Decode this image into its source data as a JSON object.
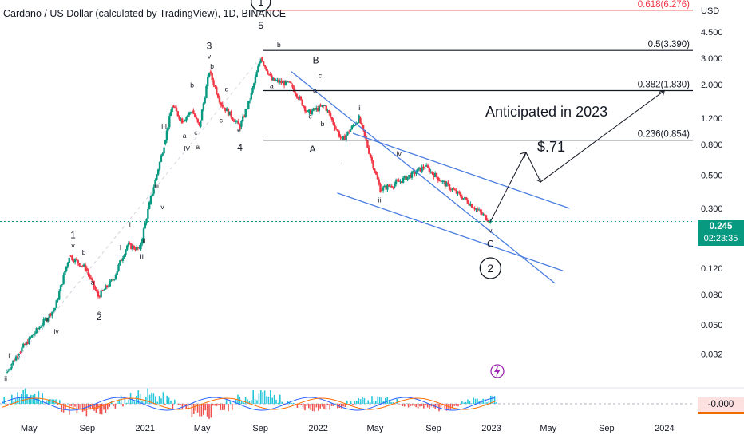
{
  "title": "Cardano / US Dollar (calculated by TradingView), 1D, BINANCE",
  "currency": "USD",
  "price_badge": {
    "price": "0.245",
    "countdown": "02:23:35"
  },
  "osc_badge": "-0.000",
  "annotation_main": "Anticipated in 2023",
  "annotation_target": "$.71",
  "colors": {
    "up": "#089981",
    "down": "#f23645",
    "trend": "#4a7de0",
    "ink": "#131722",
    "fib_top": "#f23645"
  },
  "chart_data": {
    "type": "candlestick",
    "title": "Cardano / US Dollar (calculated by TradingView), 1D, BINANCE",
    "y_scale": "log",
    "ylim": [
      0.02,
      7.0
    ],
    "y_ticks": [
      "4.500",
      "3.000",
      "2.000",
      "1.200",
      "0.800",
      "0.500",
      "0.300",
      "0.120",
      "0.080",
      "0.050",
      "0.032"
    ],
    "y_tick_values": [
      4.5,
      3.0,
      2.0,
      1.2,
      0.8,
      0.5,
      0.3,
      0.12,
      0.08,
      0.05,
      0.032
    ],
    "x_ticks": [
      "May",
      "Sep",
      "2021",
      "May",
      "Sep",
      "2022",
      "May",
      "Sep",
      "2023",
      "May",
      "Sep",
      "2024"
    ],
    "x_tick_dates": [
      "2020-05-01",
      "2020-09-01",
      "2021-01-01",
      "2021-05-01",
      "2021-09-01",
      "2022-01-01",
      "2022-05-01",
      "2022-09-01",
      "2023-01-01",
      "2023-05-01",
      "2023-09-01",
      "2024-01-01"
    ],
    "last_price": 0.245,
    "price_path": [
      {
        "date": "2020-03-13",
        "price": 0.024
      },
      {
        "date": "2020-04-10",
        "price": 0.033
      },
      {
        "date": "2020-05-20",
        "price": 0.047
      },
      {
        "date": "2020-06-25",
        "price": 0.065
      },
      {
        "date": "2020-07-25",
        "price": 0.145
      },
      {
        "date": "2020-08-28",
        "price": 0.12
      },
      {
        "date": "2020-09-24",
        "price": 0.078
      },
      {
        "date": "2020-10-25",
        "price": 0.1
      },
      {
        "date": "2020-11-24",
        "price": 0.17
      },
      {
        "date": "2020-12-20",
        "price": 0.16
      },
      {
        "date": "2021-01-10",
        "price": 0.32
      },
      {
        "date": "2021-02-10",
        "price": 0.8
      },
      {
        "date": "2021-02-27",
        "price": 1.45
      },
      {
        "date": "2021-03-20",
        "price": 1.15
      },
      {
        "date": "2021-04-10",
        "price": 1.35
      },
      {
        "date": "2021-04-25",
        "price": 1.05
      },
      {
        "date": "2021-05-16",
        "price": 2.45
      },
      {
        "date": "2021-06-10",
        "price": 1.5
      },
      {
        "date": "2021-07-20",
        "price": 1.05
      },
      {
        "date": "2021-08-10",
        "price": 1.6
      },
      {
        "date": "2021-09-02",
        "price": 3.05
      },
      {
        "date": "2021-09-25",
        "price": 2.15
      },
      {
        "date": "2021-11-05",
        "price": 2.0
      },
      {
        "date": "2021-12-10",
        "price": 1.3
      },
      {
        "date": "2022-01-15",
        "price": 1.45
      },
      {
        "date": "2022-02-20",
        "price": 0.85
      },
      {
        "date": "2022-03-28",
        "price": 1.2
      },
      {
        "date": "2022-05-12",
        "price": 0.4
      },
      {
        "date": "2022-06-20",
        "price": 0.45
      },
      {
        "date": "2022-08-14",
        "price": 0.57
      },
      {
        "date": "2022-09-20",
        "price": 0.45
      },
      {
        "date": "2022-11-09",
        "price": 0.34
      },
      {
        "date": "2022-12-30",
        "price": 0.245
      }
    ],
    "fib_levels": [
      {
        "label": "0.618(6.276)",
        "value": 6.276
      },
      {
        "label": "0.5(3.390)",
        "value": 3.39
      },
      {
        "label": "0.382(1.830)",
        "value": 1.83
      },
      {
        "label": "0.236(0.854)",
        "value": 0.854
      }
    ],
    "projection": [
      {
        "date": "2022-12-30",
        "price": 0.245
      },
      {
        "date": "2023-03-15",
        "price": 0.71
      },
      {
        "date": "2023-04-15",
        "price": 0.45
      },
      {
        "date": "2024-01-01",
        "price": 1.83
      }
    ],
    "wave_labels": [
      "1",
      "2",
      "3",
      "4",
      "5",
      "i",
      "ii",
      "iii",
      "iv",
      "v",
      "I",
      "II",
      "III",
      "IV",
      "a",
      "b",
      "c",
      "d",
      "e",
      "A",
      "B",
      "C"
    ],
    "circled_wave_labels": [
      "1",
      "2"
    ]
  }
}
